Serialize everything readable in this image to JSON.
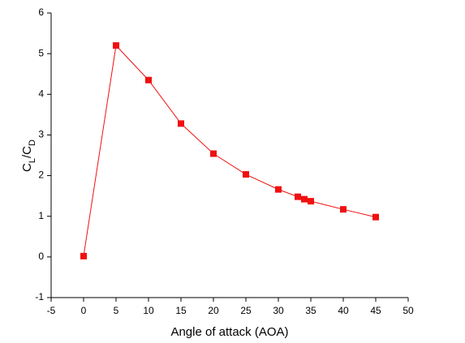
{
  "chart_data": {
    "type": "line",
    "xlabel": "Angle of attack (AOA)",
    "ylabel": [
      "C",
      "L",
      "/C",
      "D"
    ],
    "x": [
      0,
      5,
      10,
      15,
      20,
      25,
      30,
      33,
      34,
      35,
      40,
      45
    ],
    "series": [
      {
        "color": "#f01010",
        "values": [
          0.02,
          5.2,
          4.35,
          3.28,
          2.54,
          2.03,
          1.66,
          1.48,
          1.42,
          1.37,
          1.17,
          0.98
        ]
      }
    ],
    "xlim": [
      -5,
      50
    ],
    "xticks": [
      -5,
      0,
      5,
      10,
      15,
      20,
      25,
      30,
      35,
      40,
      45,
      50
    ],
    "ylim": [
      -1,
      6
    ],
    "yticks": [
      -1,
      0,
      1,
      2,
      3,
      4,
      5,
      6
    ]
  }
}
